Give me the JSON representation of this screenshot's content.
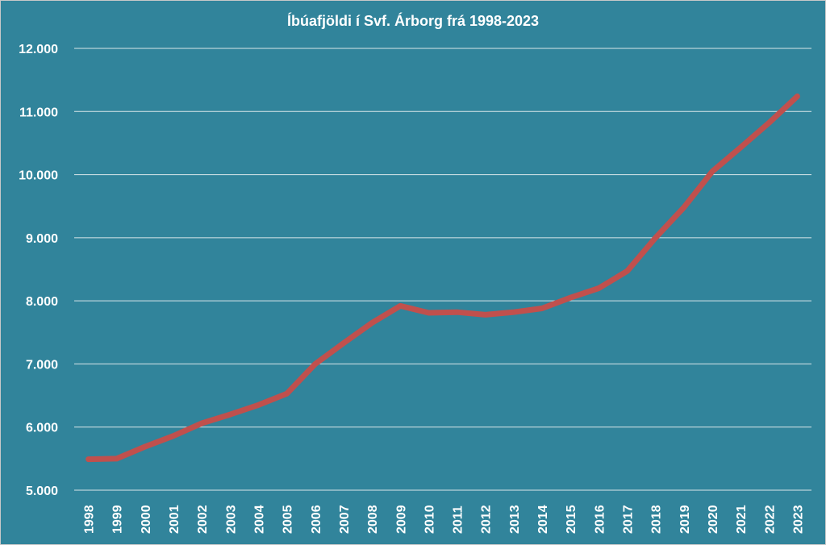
{
  "chart_data": {
    "type": "line",
    "title": "Íbúafjöldi í Svf. Árborg frá 1998-2023",
    "xlabel": "",
    "ylabel": "",
    "ylim": [
      5000,
      12000
    ],
    "y_ticks": [
      5000,
      6000,
      7000,
      8000,
      9000,
      10000,
      11000,
      12000
    ],
    "y_tick_labels": [
      "5.000",
      "6.000",
      "7.000",
      "8.000",
      "9.000",
      "10.000",
      "11.000",
      "12.000"
    ],
    "grid": true,
    "legend": "none",
    "x": [
      "1998",
      "1999",
      "2000",
      "2001",
      "2002",
      "2003",
      "2004",
      "2005",
      "2006",
      "2007",
      "2008",
      "2009",
      "2010",
      "2011",
      "2012",
      "2013",
      "2014",
      "2015",
      "2016",
      "2017",
      "2018",
      "2019",
      "2020",
      "2021",
      "2022",
      "2023"
    ],
    "series": [
      {
        "values": [
          5490,
          5500,
          5690,
          5860,
          6060,
          6200,
          6350,
          6530,
          7000,
          7330,
          7650,
          7920,
          7810,
          7820,
          7780,
          7820,
          7880,
          8050,
          8200,
          8470,
          9000,
          9480,
          10050,
          10430,
          10820,
          11240
        ],
        "color": "#c0504d"
      }
    ],
    "colors": {
      "background": "#31849b",
      "gridline": "#d9e6ea",
      "text": "#ffffff",
      "line": "#c0504d"
    }
  }
}
